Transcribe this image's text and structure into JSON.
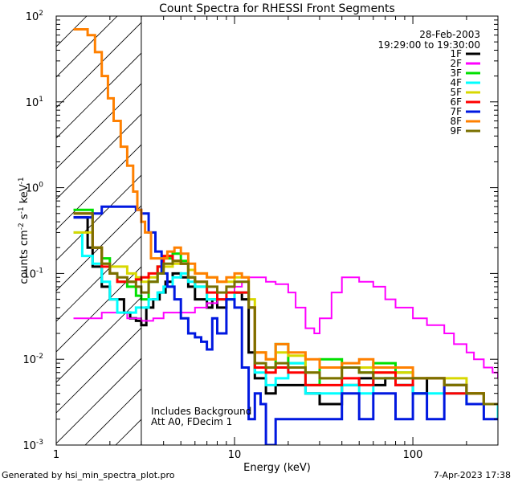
{
  "chart_data": {
    "type": "line",
    "title": "Count Spectra for RHESSI Front Segments",
    "xlabel": "Energy (keV)",
    "ylabel_base": "counts cm",
    "ylabel_exp1": "-2",
    "ylabel_mid": " s",
    "ylabel_exp2": "-1",
    "ylabel_unit": " keV",
    "ylabel_exp3": "-1",
    "x_scale": "log",
    "y_scale": "log",
    "xlim": [
      1,
      300
    ],
    "ylim": [
      0.001,
      100
    ],
    "x_ticks": [
      {
        "v": 1,
        "label": "1"
      },
      {
        "v": 10,
        "label": "10"
      },
      {
        "v": 100,
        "label": "100"
      }
    ],
    "y_ticks": [
      {
        "v": 0.001,
        "base": "10",
        "exp": "-3"
      },
      {
        "v": 0.01,
        "base": "10",
        "exp": "-2"
      },
      {
        "v": 0.1,
        "base": "10",
        "exp": "-1"
      },
      {
        "v": 1,
        "base": "10",
        "exp": "0"
      },
      {
        "v": 10,
        "base": "10",
        "exp": "1"
      },
      {
        "v": 100,
        "base": "10",
        "exp": "2"
      }
    ],
    "date": "28-Feb-2003",
    "time_range": "19:29:00 to 19:30:00",
    "annotations": [
      "Includes Background",
      "Att A0, FDecim 1"
    ],
    "hatched_region_keV": [
      1,
      3
    ],
    "series": [
      {
        "name": "1F",
        "color": "#000000",
        "width": 3,
        "x": [
          1.25,
          1.4,
          1.5,
          1.6,
          1.8,
          2.0,
          2.2,
          2.4,
          2.6,
          2.8,
          3.0,
          3.2,
          3.5,
          3.8,
          4.1,
          4.5,
          5,
          5.5,
          6,
          6.5,
          7,
          7.5,
          8,
          9,
          10,
          10.5,
          11,
          12,
          13,
          15,
          17,
          20,
          25,
          30,
          40,
          50,
          60,
          70,
          80,
          100,
          120,
          150,
          200,
          250,
          300
        ],
        "y": [
          0.45,
          0.45,
          0.2,
          0.12,
          0.07,
          0.05,
          0.05,
          0.035,
          0.03,
          0.028,
          0.025,
          0.04,
          0.05,
          0.06,
          0.08,
          0.1,
          0.09,
          0.07,
          0.05,
          0.05,
          0.04,
          0.05,
          0.04,
          0.05,
          0.06,
          0.06,
          0.05,
          0.012,
          0.006,
          0.004,
          0.005,
          0.005,
          0.004,
          0.003,
          0.005,
          0.006,
          0.005,
          0.006,
          0.005,
          0.004,
          0.006,
          0.005,
          0.004,
          0.003,
          0.002
        ]
      },
      {
        "name": "2F",
        "color": "#ff00ff",
        "width": 2,
        "x": [
          1.25,
          1.5,
          1.8,
          2,
          2.2,
          2.5,
          2.8,
          3,
          3.5,
          4,
          5,
          6,
          7,
          8,
          9,
          10,
          11,
          12,
          13,
          15,
          17,
          20,
          22,
          25,
          28,
          30,
          35,
          40,
          45,
          50,
          60,
          70,
          80,
          90,
          100,
          120,
          150,
          170,
          200,
          220,
          250,
          280,
          300
        ],
        "y": [
          0.03,
          0.03,
          0.035,
          0.035,
          0.035,
          0.03,
          0.03,
          0.028,
          0.03,
          0.035,
          0.035,
          0.04,
          0.045,
          0.05,
          0.06,
          0.07,
          0.08,
          0.09,
          0.09,
          0.08,
          0.075,
          0.06,
          0.04,
          0.023,
          0.02,
          0.03,
          0.06,
          0.09,
          0.09,
          0.08,
          0.07,
          0.05,
          0.04,
          0.04,
          0.03,
          0.025,
          0.02,
          0.015,
          0.012,
          0.01,
          0.008,
          0.007,
          0.006
        ]
      },
      {
        "name": "3F",
        "color": "#00e000",
        "width": 3,
        "x": [
          1.25,
          1.4,
          1.6,
          1.8,
          2,
          2.2,
          2.5,
          2.8,
          3,
          3.3,
          3.7,
          4,
          4.5,
          5,
          5.5,
          6,
          7,
          8,
          9,
          10,
          11,
          12,
          13,
          15,
          17,
          20,
          25,
          30,
          40,
          50,
          60,
          80,
          100,
          150,
          200,
          250,
          300
        ],
        "y": [
          0.55,
          0.55,
          0.2,
          0.15,
          0.1,
          0.08,
          0.07,
          0.055,
          0.05,
          0.08,
          0.12,
          0.15,
          0.17,
          0.14,
          0.09,
          0.07,
          0.05,
          0.05,
          0.05,
          0.06,
          0.06,
          0.04,
          0.008,
          0.008,
          0.015,
          0.009,
          0.005,
          0.01,
          0.008,
          0.007,
          0.009,
          0.007,
          0.006,
          0.005,
          0.004,
          0.003,
          0.002
        ]
      },
      {
        "name": "4F",
        "color": "#00ffff",
        "width": 3,
        "x": [
          1.25,
          1.4,
          1.6,
          1.8,
          2,
          2.2,
          2.5,
          2.8,
          3,
          3.3,
          3.7,
          4,
          4.5,
          5,
          5.5,
          6,
          7,
          8,
          9,
          10,
          11,
          12,
          13,
          15,
          17,
          20,
          25,
          30,
          40,
          50,
          60,
          80,
          100,
          150,
          200,
          250,
          300
        ],
        "y": [
          0.3,
          0.16,
          0.13,
          0.08,
          0.05,
          0.035,
          0.035,
          0.04,
          0.04,
          0.05,
          0.06,
          0.07,
          0.09,
          0.1,
          0.08,
          0.07,
          0.05,
          0.05,
          0.05,
          0.06,
          0.06,
          0.04,
          0.007,
          0.005,
          0.006,
          0.009,
          0.004,
          0.004,
          0.005,
          0.004,
          0.006,
          0.005,
          0.004,
          0.004,
          0.003,
          0.003,
          0.002
        ]
      },
      {
        "name": "5F",
        "color": "#d8d800",
        "width": 3,
        "x": [
          1.25,
          1.4,
          1.6,
          1.8,
          2,
          2.2,
          2.5,
          2.8,
          3,
          3.3,
          3.7,
          4,
          4.5,
          5,
          5.5,
          6,
          7,
          8,
          9,
          10,
          11,
          12,
          13,
          15,
          17,
          20,
          25,
          30,
          40,
          50,
          60,
          80,
          100,
          150,
          200,
          250,
          300
        ],
        "y": [
          0.3,
          0.3,
          0.2,
          0.13,
          0.12,
          0.12,
          0.1,
          0.09,
          0.08,
          0.09,
          0.1,
          0.12,
          0.13,
          0.13,
          0.11,
          0.1,
          0.09,
          0.08,
          0.08,
          0.09,
          0.09,
          0.05,
          0.012,
          0.01,
          0.012,
          0.011,
          0.007,
          0.006,
          0.008,
          0.008,
          0.007,
          0.007,
          0.006,
          0.006,
          0.004,
          0.003,
          0.003
        ]
      },
      {
        "name": "6F",
        "color": "#ff0000",
        "width": 3,
        "x": [
          1.25,
          1.4,
          1.6,
          1.8,
          2,
          2.2,
          2.5,
          2.8,
          3,
          3.3,
          3.7,
          4,
          4.5,
          5,
          5.5,
          6,
          7,
          8,
          9,
          10,
          11,
          12,
          13,
          15,
          17,
          20,
          25,
          30,
          40,
          50,
          60,
          80,
          100,
          150,
          200,
          250,
          300
        ],
        "y": [
          0.5,
          0.5,
          0.2,
          0.12,
          0.1,
          0.08,
          0.08,
          0.085,
          0.09,
          0.1,
          0.12,
          0.16,
          0.14,
          0.13,
          0.09,
          0.08,
          0.06,
          0.05,
          0.06,
          0.06,
          0.06,
          0.04,
          0.008,
          0.007,
          0.008,
          0.007,
          0.005,
          0.005,
          0.006,
          0.005,
          0.007,
          0.005,
          0.006,
          0.004,
          0.004,
          0.003,
          0.003
        ]
      },
      {
        "name": "7F",
        "color": "#0018e0",
        "width": 3,
        "x": [
          1.25,
          1.4,
          1.6,
          1.8,
          2,
          2.2,
          2.5,
          2.8,
          3,
          3.3,
          3.6,
          3.9,
          4.2,
          4.6,
          5,
          5.5,
          6,
          6.5,
          7,
          7.5,
          8,
          9,
          10,
          11,
          12,
          13,
          14,
          15,
          17,
          20,
          25,
          30,
          40,
          50,
          60,
          80,
          100,
          120,
          150,
          200,
          250,
          300
        ],
        "y": [
          0.45,
          0.45,
          0.5,
          0.6,
          0.6,
          0.6,
          0.6,
          0.55,
          0.5,
          0.3,
          0.18,
          0.1,
          0.07,
          0.05,
          0.03,
          0.02,
          0.018,
          0.016,
          0.013,
          0.03,
          0.02,
          0.05,
          0.04,
          0.008,
          0.002,
          0.004,
          0.003,
          0.001,
          0.002,
          0.002,
          0.002,
          0.002,
          0.004,
          0.002,
          0.004,
          0.002,
          0.004,
          0.002,
          0.005,
          0.003,
          0.002,
          0.002
        ]
      },
      {
        "name": "8F",
        "color": "#ff8000",
        "width": 3,
        "x": [
          1.25,
          1.4,
          1.5,
          1.65,
          1.8,
          1.95,
          2.1,
          2.3,
          2.5,
          2.7,
          2.85,
          3.0,
          3.15,
          3.4,
          3.8,
          4.2,
          4.6,
          5,
          5.5,
          6,
          7,
          8,
          9,
          10,
          11,
          12,
          13,
          15,
          17,
          20,
          25,
          30,
          40,
          50,
          60,
          80,
          100,
          150,
          200,
          250,
          300
        ],
        "y": [
          70,
          70,
          60,
          38,
          20,
          11,
          6,
          3,
          1.8,
          0.9,
          0.55,
          0.4,
          0.3,
          0.15,
          0.15,
          0.18,
          0.2,
          0.17,
          0.13,
          0.1,
          0.09,
          0.08,
          0.09,
          0.1,
          0.09,
          0.04,
          0.012,
          0.01,
          0.015,
          0.012,
          0.01,
          0.008,
          0.009,
          0.01,
          0.008,
          0.008,
          0.006,
          0.005,
          0.004,
          0.003,
          0.003
        ]
      },
      {
        "name": "9F",
        "color": "#7a7000",
        "width": 3,
        "x": [
          1.25,
          1.4,
          1.6,
          1.8,
          2,
          2.2,
          2.5,
          2.8,
          3,
          3.3,
          3.7,
          4,
          4.5,
          5,
          5.5,
          6,
          7,
          8,
          9,
          10,
          11,
          12,
          13,
          15,
          17,
          20,
          25,
          30,
          40,
          50,
          60,
          80,
          100,
          150,
          200,
          250,
          300
        ],
        "y": [
          0.5,
          0.5,
          0.2,
          0.13,
          0.1,
          0.09,
          0.08,
          0.07,
          0.06,
          0.08,
          0.1,
          0.13,
          0.14,
          0.13,
          0.09,
          0.08,
          0.07,
          0.06,
          0.07,
          0.08,
          0.08,
          0.04,
          0.009,
          0.008,
          0.009,
          0.008,
          0.007,
          0.006,
          0.008,
          0.007,
          0.006,
          0.006,
          0.006,
          0.005,
          0.004,
          0.003,
          0.003
        ]
      }
    ]
  },
  "footer": {
    "generated_by": "Generated by hsi_min_spectra_plot.pro",
    "generated_on": "7-Apr-2023 17:38"
  }
}
